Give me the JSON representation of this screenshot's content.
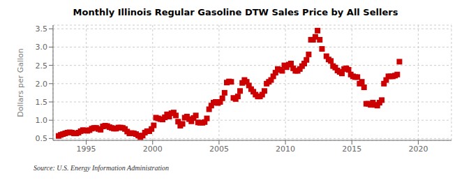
{
  "chart_data": {
    "type": "scatter",
    "title": "Monthly Illinois Regular Gasoline DTW Sales Price by All Sellers",
    "ylabel": "Dollars per Gallon",
    "annotations": [
      "Source: U.S. Energy Information Administration"
    ],
    "color": "#cc0000",
    "marker": "square",
    "grid": true,
    "xlim": [
      1992.5,
      2022.5
    ],
    "ylim": [
      0.45,
      3.6
    ],
    "xticks": [
      1995,
      2000,
      2005,
      2010,
      2015,
      2020
    ],
    "yticks": [
      0.5,
      {
        "value": 1.0,
        "label": "1.0"
      },
      1.5,
      {
        "value": 2.0,
        "label": "2.0"
      },
      2.5,
      {
        "value": 3.0,
        "label": "3.0"
      },
      3.5
    ],
    "x": [
      1992.917,
      1993.083,
      1993.25,
      1993.417,
      1993.583,
      1993.75,
      1993.917,
      1994.083,
      1994.25,
      1994.417,
      1994.583,
      1994.75,
      1994.917,
      1995.083,
      1995.25,
      1995.417,
      1995.583,
      1995.75,
      1995.917,
      1996.083,
      1996.25,
      1996.417,
      1996.583,
      1996.75,
      1996.917,
      1997.083,
      1997.25,
      1997.417,
      1997.583,
      1997.75,
      1997.917,
      1998.083,
      1998.25,
      1998.417,
      1998.583,
      1998.75,
      1998.917,
      1999.083,
      1999.25,
      1999.417,
      1999.583,
      1999.75,
      1999.917,
      2000.083,
      2000.25,
      2000.417,
      2000.583,
      2000.75,
      2000.917,
      2001.083,
      2001.25,
      2001.417,
      2001.583,
      2001.75,
      2001.917,
      2002.083,
      2002.25,
      2002.417,
      2002.583,
      2002.75,
      2002.917,
      2003.083,
      2003.25,
      2003.417,
      2003.583,
      2003.75,
      2003.917,
      2004.083,
      2004.25,
      2004.417,
      2004.583,
      2004.75,
      2004.917,
      2005.083,
      2005.25,
      2005.417,
      2005.583,
      2005.75,
      2005.917,
      2006.083,
      2006.25,
      2006.417,
      2006.583,
      2006.75,
      2006.917,
      2007.083,
      2007.25,
      2007.417,
      2007.583,
      2007.75,
      2007.917,
      2008.083,
      2008.25,
      2008.417,
      2008.583,
      2008.75,
      2008.917,
      2009.083,
      2009.25,
      2009.417,
      2009.583,
      2009.75,
      2009.917,
      2010.083,
      2010.25,
      2010.417,
      2010.583,
      2010.75,
      2010.917,
      2011.083,
      2011.25,
      2011.417,
      2011.583,
      2011.75,
      2011.917,
      2012.083,
      2012.25,
      2012.417,
      2012.583,
      2012.75,
      2013.083,
      2013.25,
      2013.417,
      2013.583,
      2013.75,
      2013.917,
      2014.083,
      2014.25,
      2014.417,
      2014.583,
      2014.75,
      2014.917,
      2015.083,
      2015.25,
      2015.417,
      2015.583,
      2015.75,
      2015.917,
      2016.083,
      2016.25,
      2016.417,
      2016.583,
      2016.75,
      2016.917,
      2017.083,
      2017.25,
      2017.417,
      2017.583,
      2017.75,
      2017.917,
      2018.083,
      2018.25,
      2018.417,
      2018.583
    ],
    "values": [
      0.57,
      0.6,
      0.62,
      0.64,
      0.66,
      0.67,
      0.66,
      0.64,
      0.64,
      0.66,
      0.7,
      0.73,
      0.72,
      0.71,
      0.73,
      0.77,
      0.79,
      0.79,
      0.76,
      0.74,
      0.83,
      0.85,
      0.84,
      0.81,
      0.79,
      0.77,
      0.77,
      0.8,
      0.8,
      0.79,
      0.76,
      0.69,
      0.64,
      0.65,
      0.64,
      0.62,
      0.58,
      0.54,
      0.58,
      0.66,
      0.7,
      0.7,
      0.76,
      0.86,
      1.07,
      1.05,
      1.03,
      1.02,
      1.08,
      1.16,
      1.1,
      1.19,
      1.21,
      1.13,
      0.96,
      0.85,
      0.9,
      1.07,
      1.1,
      1.03,
      0.97,
      1.06,
      1.13,
      0.94,
      0.93,
      0.93,
      0.95,
      1.05,
      1.3,
      1.4,
      1.48,
      1.5,
      1.47,
      1.5,
      1.6,
      1.75,
      2.03,
      2.06,
      2.05,
      1.61,
      1.58,
      1.65,
      1.8,
      2.02,
      2.1,
      2.05,
      1.95,
      1.85,
      1.78,
      1.7,
      1.65,
      1.65,
      1.7,
      1.8,
      2.0,
      2.05,
      2.1,
      2.2,
      2.3,
      2.4,
      2.38,
      2.35,
      2.5,
      2.45,
      2.52,
      2.55,
      2.42,
      2.35,
      2.35,
      2.4,
      2.48,
      2.55,
      2.65,
      2.8,
      3.2,
      3.2,
      3.28,
      3.45,
      3.2,
      2.95,
      2.75,
      2.66,
      2.62,
      2.48,
      2.44,
      2.36,
      2.32,
      2.28,
      2.4,
      2.42,
      2.38,
      2.25,
      2.2,
      2.18,
      2.18,
      2.0,
      2.05,
      1.9,
      1.45,
      1.45,
      1.42,
      1.48,
      1.42,
      1.4,
      1.48,
      1.55,
      2.0,
      2.1,
      2.2,
      2.2,
      2.2,
      2.22,
      2.25,
      2.6
    ]
  }
}
